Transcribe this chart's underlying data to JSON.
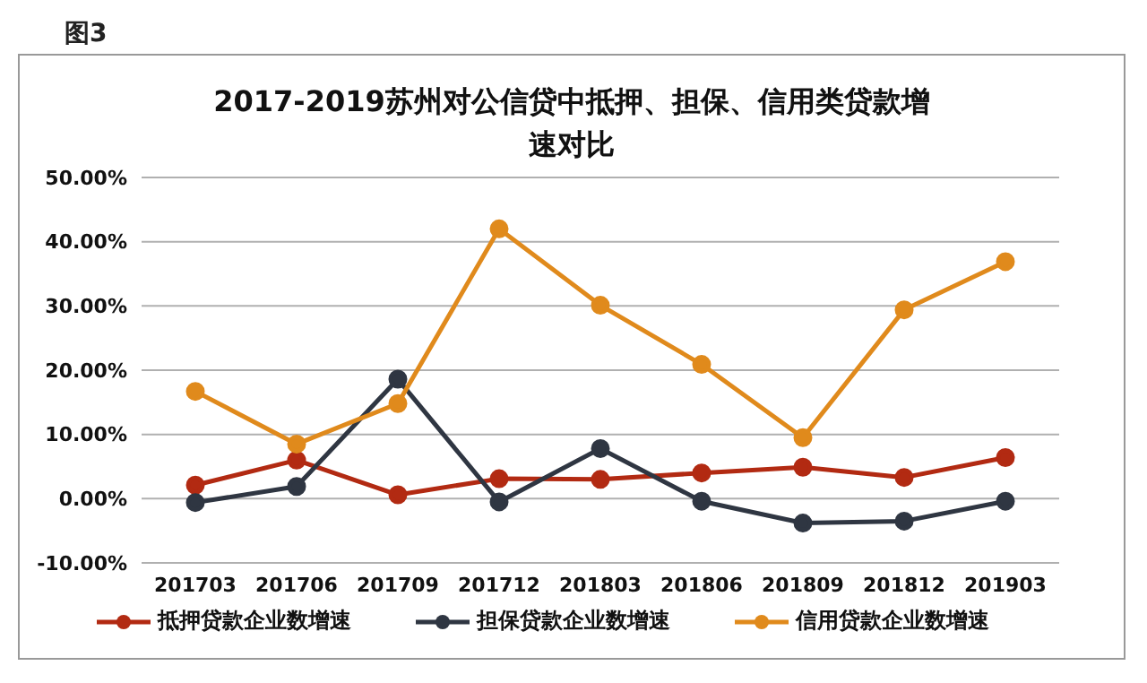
{
  "chart_data": {
    "type": "line",
    "title": "2017-2019苏州对公信贷中抵押、担保、信用类贷款增速对比",
    "annotations": [
      "图3"
    ],
    "categories": [
      "201703",
      "201706",
      "201709",
      "201712",
      "201803",
      "201806",
      "201809",
      "201812",
      "201903"
    ],
    "series": [
      {
        "name": "抵押贷款企业数增速",
        "color": "#b22a12",
        "values": [
          2.1,
          6.0,
          0.6,
          3.1,
          3.0,
          4.0,
          4.9,
          3.3,
          6.4
        ]
      },
      {
        "name": "担保贷款企业数增速",
        "color": "#2f3642",
        "values": [
          -0.6,
          1.9,
          18.6,
          -0.5,
          7.8,
          -0.4,
          -3.8,
          -3.5,
          -0.4
        ]
      },
      {
        "name": "信用贷款企业数增速",
        "color": "#e08a1c",
        "values": [
          16.7,
          8.5,
          14.8,
          42.0,
          30.1,
          20.9,
          9.5,
          29.4,
          36.9
        ]
      }
    ],
    "ylim": [
      -10,
      50
    ],
    "yticks": [
      {
        "value": -10,
        "label": "-10.00%"
      },
      {
        "value": 0,
        "label": "0.00%"
      },
      {
        "value": 10,
        "label": "10.00%"
      },
      {
        "value": 20,
        "label": "20.00%"
      },
      {
        "value": 30,
        "label": "30.00%"
      },
      {
        "value": 40,
        "label": "40.00%"
      },
      {
        "value": 50,
        "label": "50.00%"
      }
    ],
    "grid": "y",
    "legend": "bottom",
    "marker": "circle",
    "line_style": "solid"
  }
}
